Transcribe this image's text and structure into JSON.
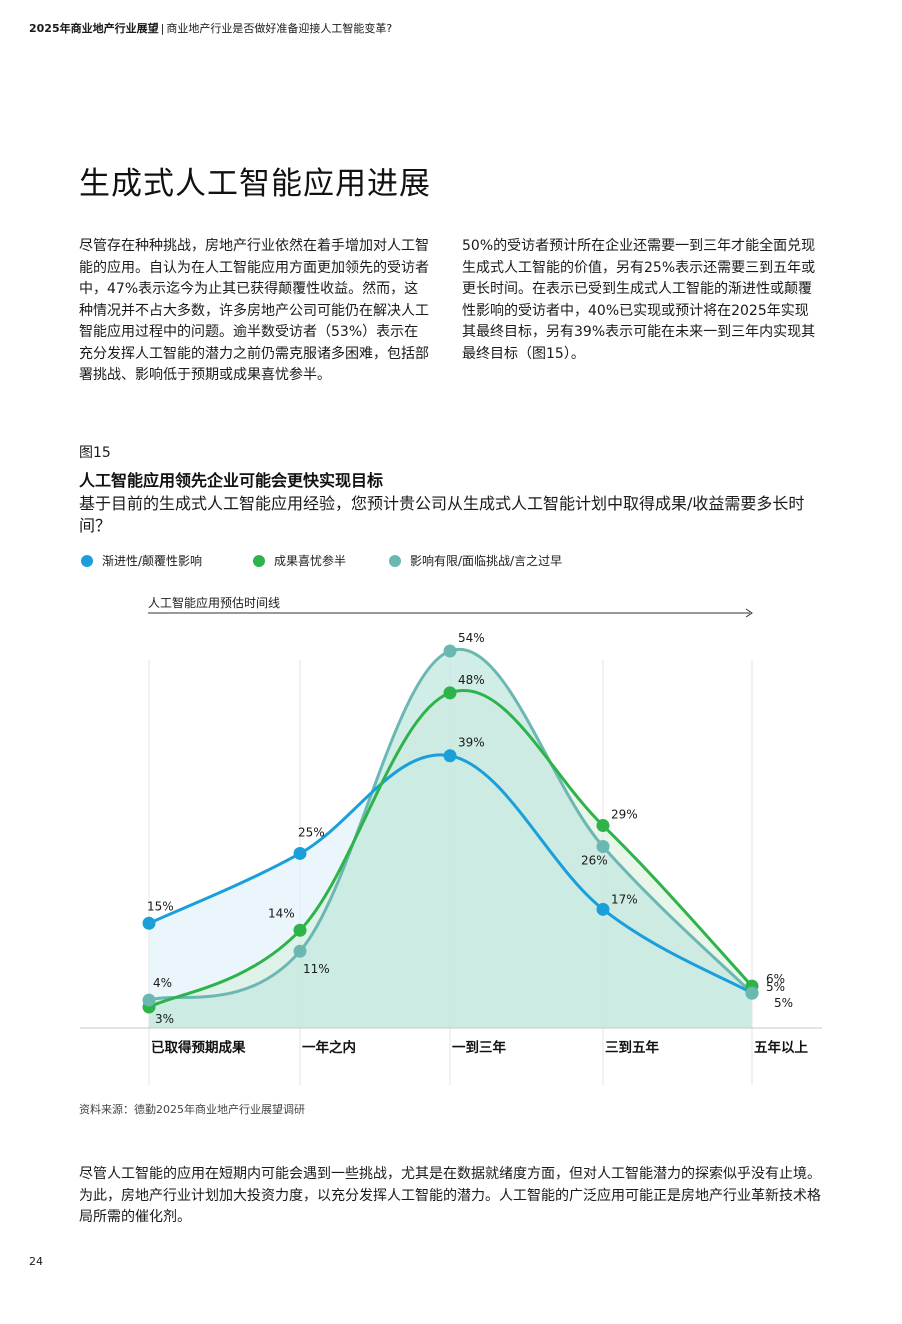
{
  "header": {
    "report_title": "2025年商业地产行业展望",
    "separator": "|",
    "subtitle": "商业地产行业是否做好准备迎接人工智能变革?"
  },
  "section_title": "生成式人工智能应用进展",
  "paragraphs": {
    "left": "尽管存在种种挑战，房地产行业依然在着手增加对人工智能的应用。自认为在人工智能应用方面更加领先的受访者中，47%表示迄今为止其已获得颠覆性收益。然而，这种情况并不占大多数，许多房地产公司可能仍在解决人工智能应用过程中的问题。逾半数受访者（53%）表示在充分发挥人工智能的潜力之前仍需克服诸多困难，包括部署挑战、影响低于预期或成果喜忧参半。",
    "right": "50%的受访者预计所在企业还需要一到三年才能全面兑现生成式人工智能的价值，另有25%表示还需要三到五年或更长时间。在表示已受到生成式人工智能的渐进性或颠覆性影响的受访者中，40%已实现或预计将在2025年实现其最终目标，另有39%表示可能在未来一到三年内实现其最终目标（图15）。",
    "bottom": "尽管人工智能的应用在短期内可能会遇到一些挑战，尤其是在数据就绪度方面，但对人工智能潜力的探索似乎没有止境。为此，房地产行业计划加大投资力度，以充分发挥人工智能的潜力。人工智能的广泛应用可能正是房地产行业革新技术格局所需的催化剂。"
  },
  "figure": {
    "label": "图15",
    "title": "人工智能应用领先企业可能会更快实现目标",
    "subtitle": "基于目前的生成式人工智能应用经验，您预计贵公司从生成式人工智能计划中取得成果/收益需要多长时间？",
    "source": "资料来源：德勤2025年商业地产行业展望调研"
  },
  "chart_data": {
    "type": "line",
    "timeline_label": "人工智能应用预估时间线",
    "categories": [
      "已取得预期成果",
      "一年之内",
      "一到三年",
      "三到五年",
      "五年以上"
    ],
    "series": [
      {
        "name": "渐进性/颠覆性影响",
        "color": "#1a9fdb",
        "values": [
          15,
          25,
          39,
          17,
          5
        ],
        "labels": [
          "15%",
          "25%",
          "39%",
          "17%",
          "5%"
        ]
      },
      {
        "name": "成果喜忧参半",
        "color": "#2db34a",
        "values": [
          3,
          14,
          48,
          29,
          6
        ],
        "labels": [
          "3%",
          "14%",
          "48%",
          "29%",
          "6%"
        ]
      },
      {
        "name": "影响有限/面临挑战/言之过早",
        "color": "#6bb8b2",
        "values": [
          4,
          11,
          54,
          26,
          5
        ],
        "labels": [
          "4%",
          "11%",
          "54%",
          "26%",
          "5%"
        ]
      }
    ],
    "ylim": [
      0,
      54
    ],
    "legend_position": "top",
    "grid": false
  },
  "page_number": "24"
}
